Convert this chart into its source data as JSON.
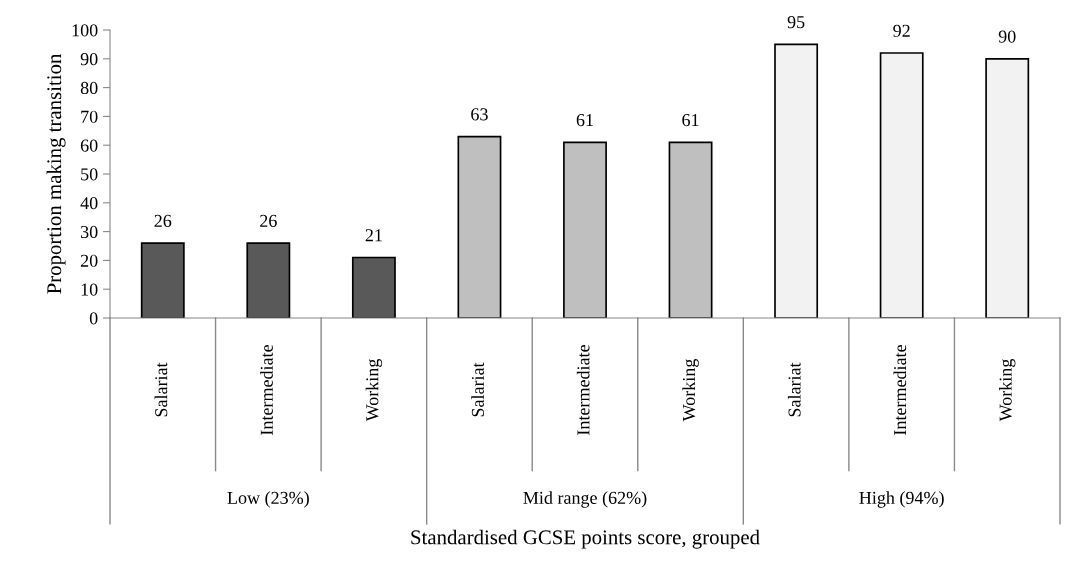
{
  "chart_data": {
    "type": "bar",
    "ylabel": "Proportion making transition",
    "xlabel": "Standardised GCSE points score, grouped",
    "categories": [
      "Salariat",
      "Intermediate",
      "Working",
      "Salariat",
      "Intermediate",
      "Working",
      "Salariat",
      "Intermediate",
      "Working"
    ],
    "values": [
      26,
      26,
      21,
      63,
      61,
      61,
      95,
      92,
      90
    ],
    "colors": [
      "#595959",
      "#595959",
      "#595959",
      "#bfbfbf",
      "#bfbfbf",
      "#bfbfbf",
      "#f2f2f2",
      "#f2f2f2",
      "#f2f2f2"
    ],
    "annotations": [
      "Low (23%)",
      "Mid range (62%)",
      "High (94%)"
    ],
    "ylim": [
      0,
      100
    ],
    "yticks": [
      0,
      10,
      20,
      30,
      40,
      50,
      60,
      70,
      80,
      90,
      100
    ],
    "data_labels": true,
    "grid": false,
    "legend": false
  }
}
